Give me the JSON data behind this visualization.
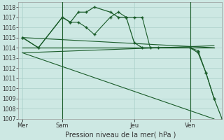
{
  "bg_color": "#cde8e3",
  "grid_color": "#aacfc8",
  "line_color": "#1a5c2a",
  "title": "Pression niveau de la mer( hPa )",
  "ylim": [
    1007,
    1018.5
  ],
  "yticks": [
    1007,
    1008,
    1009,
    1010,
    1011,
    1012,
    1013,
    1014,
    1015,
    1016,
    1017,
    1018
  ],
  "xtick_labels": [
    "Mer",
    "Sam",
    "Jeu",
    "Ven"
  ],
  "xtick_positions": [
    0,
    5,
    14,
    21
  ],
  "xlim": [
    -0.5,
    25
  ],
  "vline_positions": [
    5,
    21
  ],
  "series_wavy": {
    "x": [
      0,
      2,
      5,
      6,
      7,
      8,
      9,
      11,
      12,
      13,
      14,
      15,
      16,
      17,
      21,
      22,
      23,
      24
    ],
    "y": [
      1015,
      1014,
      1017,
      1016.5,
      1016.5,
      1016,
      1015.3,
      1017,
      1017.5,
      1017,
      1017,
      1017,
      1014,
      1014,
      1014,
      1013.7,
      1011.5,
      1009
    ]
  },
  "series_flat1": {
    "x": [
      0,
      5,
      21,
      24
    ],
    "y": [
      1014,
      1014,
      1014,
      1014
    ]
  },
  "series_flat2": {
    "x": [
      0,
      24
    ],
    "y": [
      1013.5,
      1014.2
    ]
  },
  "series_flat3": {
    "x": [
      0,
      24
    ],
    "y": [
      1015,
      1014
    ]
  },
  "series_diagonal": {
    "x": [
      0,
      24
    ],
    "y": [
      1013.5,
      1007
    ]
  },
  "series_main": {
    "x": [
      0,
      2,
      5,
      6,
      7,
      8,
      9,
      11,
      12,
      13,
      14,
      15,
      21,
      22,
      23,
      24,
      25
    ],
    "y": [
      1015,
      1014,
      1017,
      1016.5,
      1017.5,
      1017.5,
      1018,
      1017.5,
      1017,
      1017,
      1014.5,
      1014,
      1014,
      1013.5,
      1011.5,
      1009,
      1007
    ]
  }
}
